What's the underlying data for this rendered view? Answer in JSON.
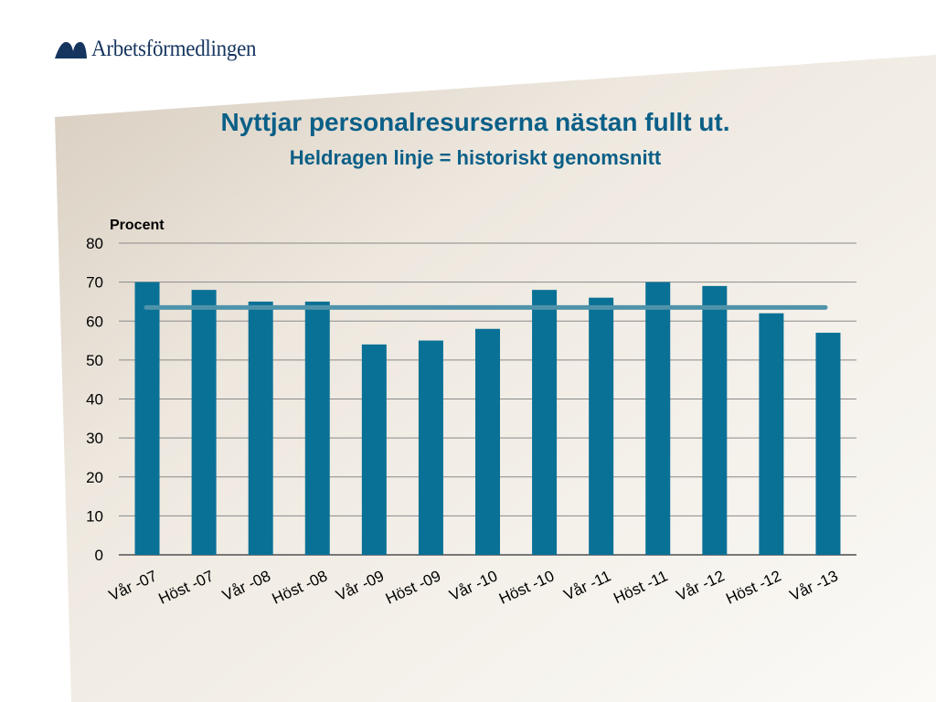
{
  "header": {
    "brand": "Arbetsförmedlingen",
    "logo_icon": "arbetsformedlingen-logo-icon",
    "title": "Nyttjar personalresurserna nästan fullt ut.",
    "subtitle": "Heldragen linje = historiskt genomsnitt"
  },
  "colors": {
    "title": "#0b5f87",
    "bar": "#0a7196",
    "average_line": "#4f93ab",
    "gridline": "#8a8a8a",
    "panel_light": "#f4f0ea",
    "panel_dark": "#d8cdbf",
    "brand": "#15355f"
  },
  "chart_data": {
    "type": "bar",
    "title": "",
    "ylabel": "Procent",
    "xlabel": "",
    "ylim": [
      0,
      80
    ],
    "yticks": [
      0,
      10,
      20,
      30,
      40,
      50,
      60,
      70,
      80
    ],
    "grid": true,
    "categories": [
      "Vår -07",
      "Höst -07",
      "Vår -08",
      "Höst -08",
      "Vår -09",
      "Höst -09",
      "Vår -10",
      "Höst -10",
      "Vår -11",
      "Höst -11",
      "Vår -12",
      "Höst -12",
      "Vår -13"
    ],
    "values": [
      70,
      68,
      65,
      65,
      54,
      55,
      58,
      68,
      66,
      70,
      69,
      62,
      57
    ],
    "average": 63.5
  }
}
